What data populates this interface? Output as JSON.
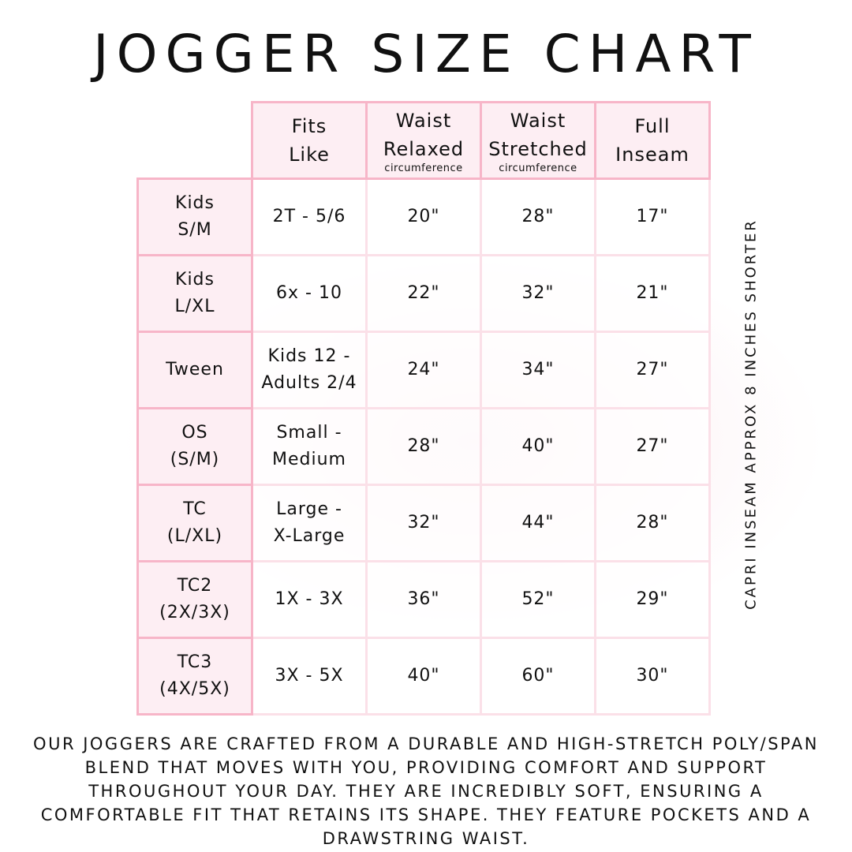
{
  "title": "JOGGER SIZE CHART",
  "colors": {
    "header_bg": "#fdeef3",
    "border": "#f7b5c8"
  },
  "headers": [
    {
      "line1": "Fits",
      "line2": "Like",
      "sub": ""
    },
    {
      "line1": "Waist",
      "line2": "Relaxed",
      "sub": "circumference"
    },
    {
      "line1": "Waist",
      "line2": "Stretched",
      "sub": "circumference"
    },
    {
      "line1": "Full",
      "line2": "Inseam",
      "sub": ""
    }
  ],
  "rows": [
    {
      "size1": "Kids",
      "size2": "S/M",
      "fits1": "2T - 5/6",
      "fits2": "",
      "relaxed": "20\"",
      "stretched": "28\"",
      "inseam": "17\""
    },
    {
      "size1": "Kids",
      "size2": "L/XL",
      "fits1": "6x - 10",
      "fits2": "",
      "relaxed": "22\"",
      "stretched": "32\"",
      "inseam": "21\""
    },
    {
      "size1": "Tween",
      "size2": "",
      "fits1": "Kids 12 -",
      "fits2": "Adults 2/4",
      "relaxed": "24\"",
      "stretched": "34\"",
      "inseam": "27\""
    },
    {
      "size1": "OS",
      "size2": "(S/M)",
      "fits1": "Small -",
      "fits2": "Medium",
      "relaxed": "28\"",
      "stretched": "40\"",
      "inseam": "27\""
    },
    {
      "size1": "TC",
      "size2": "(L/XL)",
      "fits1": "Large -",
      "fits2": "X-Large",
      "relaxed": "32\"",
      "stretched": "44\"",
      "inseam": "28\""
    },
    {
      "size1": "TC2",
      "size2": "(2X/3X)",
      "fits1": "1X - 3X",
      "fits2": "",
      "relaxed": "36\"",
      "stretched": "52\"",
      "inseam": "29\""
    },
    {
      "size1": "TC3",
      "size2": "(4X/5X)",
      "fits1": "3X - 5X",
      "fits2": "",
      "relaxed": "40\"",
      "stretched": "60\"",
      "inseam": "30\""
    }
  ],
  "side_note": "CAPRI INSEAM APPROX 8 INCHES SHORTER",
  "description": "Our joggers are crafted from a durable and high-stretch poly/span blend that moves with you, providing comfort and support throughout your day. They are incredibly soft, ensuring a comfortable fit that retains its shape. They feature pockets and a drawstring waist."
}
